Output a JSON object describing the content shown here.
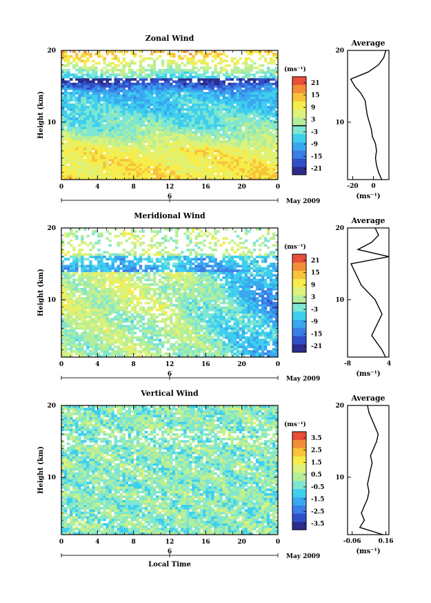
{
  "chart_data": [
    {
      "type": "heatmap",
      "title": "Zonal Wind",
      "ylabel": "Height (km)",
      "y_ticks": [
        "20",
        "10"
      ],
      "ylim": [
        2,
        20
      ],
      "x_ticks": [
        "0",
        "4",
        "8",
        "12",
        "16",
        "20",
        "0"
      ],
      "xlim": [
        0,
        24
      ],
      "date_marker": "6",
      "date_label": "May 2009",
      "colorbar": {
        "unit": "(ms⁻¹)",
        "ticks": [
          "21",
          "15",
          "9",
          "3",
          "-3",
          "-9",
          "-15",
          "-21"
        ],
        "range": [
          -24,
          24
        ],
        "zero_line": true
      },
      "average_profile": {
        "title": "Average",
        "xlabel": "(ms⁻¹)",
        "x_ticks": [
          "-20",
          "0"
        ],
        "x_tick_values": [
          -20,
          0
        ],
        "xlim": [
          -25,
          15
        ],
        "y_ticks": [
          "20",
          "10"
        ],
        "height_km": [
          2,
          3,
          4,
          5,
          6,
          7,
          8,
          9,
          10,
          11,
          12,
          13,
          14,
          15,
          16,
          17,
          18,
          19,
          20
        ],
        "values": [
          8,
          5,
          3,
          2,
          3,
          2,
          -1,
          -2,
          -4,
          -6,
          -7,
          -8,
          -12,
          -18,
          -22,
          -5,
          5,
          10,
          12
        ]
      }
    },
    {
      "type": "heatmap",
      "title": "Meridional Wind",
      "ylabel": "Height (km)",
      "y_ticks": [
        "20",
        "10"
      ],
      "ylim": [
        2,
        20
      ],
      "x_ticks": [
        "0",
        "4",
        "8",
        "12",
        "16",
        "20",
        "0"
      ],
      "xlim": [
        0,
        24
      ],
      "date_marker": "6",
      "date_label": "May 2009",
      "colorbar": {
        "unit": "(ms⁻¹)",
        "ticks": [
          "21",
          "15",
          "9",
          "3",
          "-3",
          "-9",
          "-15",
          "-21"
        ],
        "range": [
          -24,
          24
        ],
        "zero_line": true
      },
      "average_profile": {
        "title": "Average",
        "xlabel": "(ms⁻¹)",
        "x_ticks": [
          "-8",
          "4"
        ],
        "x_tick_values": [
          -8,
          4
        ],
        "xlim": [
          -8,
          4
        ],
        "y_ticks": [
          "20",
          "10"
        ],
        "height_km": [
          2,
          3,
          4,
          5,
          6,
          7,
          8,
          9,
          10,
          11,
          12,
          13,
          14,
          15,
          16,
          17,
          18,
          19,
          20
        ],
        "values": [
          3,
          2,
          0.5,
          -1,
          0,
          1,
          2,
          1,
          0,
          -2,
          -4,
          -5,
          -6,
          -7,
          4,
          -5,
          -1,
          1,
          0
        ]
      }
    },
    {
      "type": "heatmap",
      "title": "Vertical Wind",
      "ylabel": "Height (km)",
      "y_ticks": [
        "20",
        "10"
      ],
      "ylim": [
        2,
        20
      ],
      "x_ticks": [
        "0",
        "4",
        "8",
        "12",
        "16",
        "20",
        "0"
      ],
      "xlim": [
        0,
        24
      ],
      "xlabel": "Local Time",
      "date_marker": "6",
      "date_label": "May 2009",
      "colorbar": {
        "unit": "(ms⁻¹)",
        "ticks": [
          "3.5",
          "2.5",
          "1.5",
          "0.5",
          "-0.5",
          "-1.5",
          "-2.5",
          "-3.5"
        ],
        "range": [
          -4,
          4
        ],
        "zero_line": false
      },
      "average_profile": {
        "title": "Average",
        "xlabel": "(ms⁻¹)",
        "x_ticks": [
          "-0.06",
          "0.16"
        ],
        "x_tick_values": [
          -0.06,
          0.16
        ],
        "xlim": [
          -0.09,
          0.18
        ],
        "y_ticks": [
          "20",
          "10"
        ],
        "height_km": [
          2,
          3,
          4,
          5,
          6,
          7,
          8,
          9,
          10,
          11,
          12,
          13,
          14,
          15,
          16,
          17,
          18,
          19,
          20
        ],
        "values": [
          0.14,
          -0.01,
          0.02,
          0.0,
          0.02,
          0.04,
          0.05,
          0.04,
          0.05,
          0.06,
          0.07,
          0.06,
          0.08,
          0.1,
          0.11,
          0.09,
          0.07,
          0.05,
          0.04
        ]
      }
    }
  ]
}
